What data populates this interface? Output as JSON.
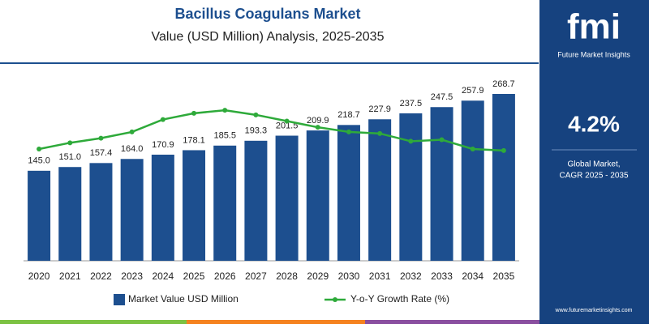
{
  "chart_data": {
    "type": "bar",
    "title": "Bacillus Coagulans Market",
    "subtitle": "Value (USD Million) Analysis, 2025-2035",
    "categories": [
      "2020",
      "2021",
      "2022",
      "2023",
      "2024",
      "2025",
      "2026",
      "2027",
      "2028",
      "2029",
      "2030",
      "2031",
      "2032",
      "2033",
      "2034",
      "2035"
    ],
    "series": [
      {
        "name": "Market Value USD Million",
        "color": "#1d4f8f",
        "values": [
          145.0,
          151.0,
          157.4,
          164.0,
          170.9,
          178.1,
          185.5,
          193.3,
          201.5,
          209.9,
          218.7,
          227.9,
          237.5,
          247.5,
          257.9,
          268.7
        ],
        "value_labels": [
          "145.0",
          "151.0",
          "157.4",
          "164.0",
          "170.9",
          "178.1",
          "185.5",
          "193.3",
          "201.5",
          "209.9",
          "218.7",
          "227.9",
          "237.5",
          "247.5",
          "257.9",
          "268.7"
        ]
      },
      {
        "name": "Y-o-Y Growth Rate (%)",
        "color": "#2eaa3a",
        "axis": "y2",
        "values": [
          4.22,
          4.26,
          4.29,
          4.33,
          4.41,
          4.45,
          4.47,
          4.44,
          4.4,
          4.36,
          4.33,
          4.32,
          4.27,
          4.28,
          4.22,
          4.21
        ]
      }
    ],
    "ylim": [
      0,
      300
    ],
    "y2lim": [
      3.5,
      4.7
    ]
  },
  "panel": {
    "logo": "fmi",
    "brand": "Future Market Insights",
    "cagr": "4.2%",
    "cagr_label_1": "Global Market,",
    "cagr_label_2": "CAGR 2025 - 2035",
    "website": "www.futuremarketinsights.com"
  }
}
